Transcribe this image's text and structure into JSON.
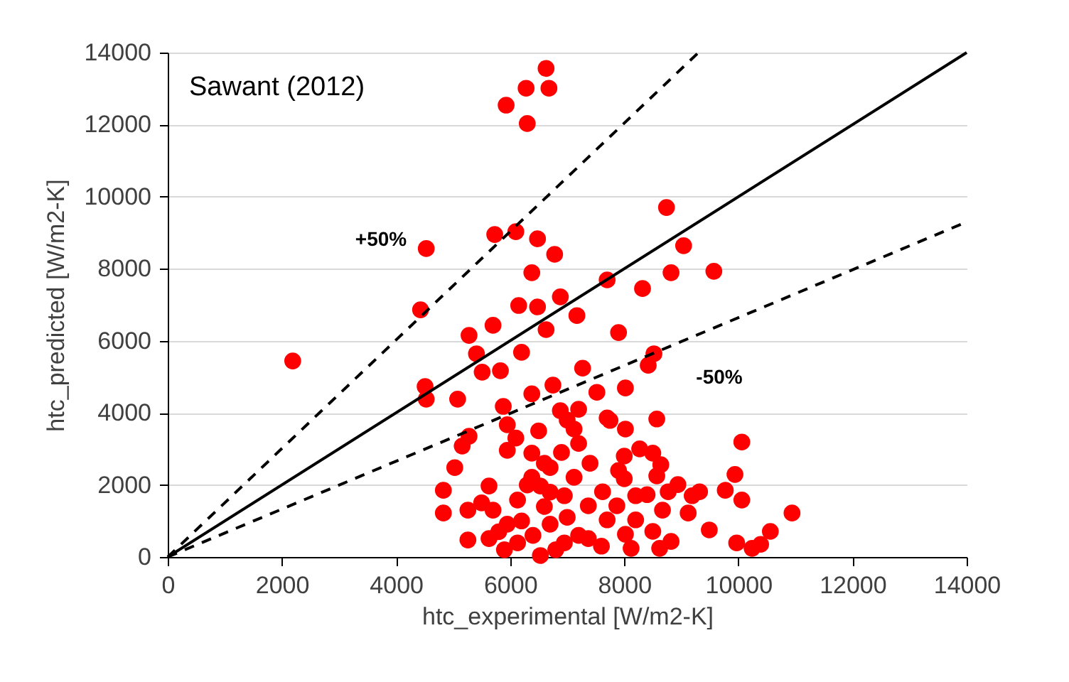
{
  "chart_data": {
    "type": "scatter",
    "xlabel": "htc_experimental [W/m2-K]",
    "ylabel": "htc_predicted [W/m2-K]",
    "xlim": [
      0,
      14000
    ],
    "ylim": [
      0,
      14000
    ],
    "xticks": [
      0,
      2000,
      4000,
      6000,
      8000,
      10000,
      12000,
      14000
    ],
    "yticks": [
      0,
      2000,
      4000,
      6000,
      8000,
      10000,
      12000,
      14000
    ],
    "grid": "y",
    "annotations": [
      "Sawant (2012)",
      "+50%",
      "-50%"
    ],
    "series": [
      {
        "marker": "circle",
        "color": "#ff0000",
        "x": [
          6630,
          6280,
          6680,
          5930,
          6300,
          2190,
          4530,
          4430,
          5730,
          6100,
          6480,
          6780,
          6380,
          6880,
          6480,
          6150,
          7170,
          7700,
          8320,
          8740,
          9040,
          8820,
          9570,
          5280,
          5700,
          7900,
          5410,
          6200,
          6630,
          4510,
          4530,
          5080,
          5510,
          5830,
          6380,
          6750,
          7270,
          7520,
          8020,
          6880,
          7200,
          7700,
          8020,
          8000,
          5280,
          5160,
          5030,
          4830,
          4830,
          5260,
          5260,
          5950,
          5950,
          5880,
          6380,
          6700,
          7120,
          7200,
          5630,
          5700,
          6130,
          6530,
          6950,
          7370,
          7620,
          7700,
          5630,
          6130,
          6530,
          6950,
          7370,
          8020,
          7870,
          5950,
          6700,
          6380,
          7120,
          8520,
          8420,
          7750,
          8570,
          10060,
          8270,
          8500,
          8640,
          8570,
          8000,
          8940,
          8770,
          9320,
          9190,
          9940,
          9770,
          10060,
          8400,
          8670,
          9120,
          10940,
          9490,
          10560,
          10390,
          10240,
          9970,
          8820,
          8500,
          8200,
          8620,
          8120,
          6200,
          6400,
          6600,
          6800,
          7000,
          7200,
          6300,
          6600,
          5800,
          6900,
          7400,
          5500,
          6500,
          7000,
          6100,
          5900,
          7600,
          7900,
          8200,
          6700
        ],
        "values": [
          13560,
          13010,
          13010,
          12540,
          12030,
          5440,
          8560,
          6860,
          8950,
          9030,
          8830,
          8400,
          7890,
          7220,
          6940,
          6980,
          6700,
          7690,
          7450,
          9700,
          8640,
          7890,
          7930,
          6150,
          6430,
          6230,
          5640,
          5680,
          6310,
          4730,
          4380,
          4380,
          5130,
          5170,
          4530,
          4770,
          5240,
          4570,
          4690,
          4060,
          4100,
          3860,
          3550,
          2800,
          3350,
          3080,
          2480,
          1850,
          1220,
          1300,
          470,
          2960,
          3670,
          4180,
          2880,
          2480,
          3550,
          3150,
          1970,
          1300,
          1580,
          1970,
          1700,
          1420,
          1810,
          1030,
          510,
          390,
          40,
          390,
          510,
          630,
          1420,
          910,
          910,
          2210,
          2210,
          5640,
          5320,
          3790,
          3830,
          3190,
          3000,
          2880,
          2560,
          2250,
          2170,
          2010,
          1810,
          1810,
          1700,
          2290,
          1850,
          1580,
          1730,
          1300,
          1220,
          1220,
          750,
          710,
          350,
          240,
          390,
          430,
          710,
          1030,
          240,
          240,
          1000,
          600,
          1400,
          200,
          1100,
          600,
          2000,
          2600,
          700,
          2900,
          2600,
          1500,
          3500,
          3800,
          3300,
          200,
          300,
          2400,
          1700,
          1800
        ]
      },
      {
        "type": "line",
        "color": "#000000",
        "line_style": "solid",
        "x": [
          0,
          14000
        ],
        "values": [
          0,
          14000
        ]
      },
      {
        "type": "line",
        "color": "#000000",
        "line_style": "dashed",
        "x": [
          0,
          9300
        ],
        "values": [
          0,
          14000
        ]
      },
      {
        "type": "line",
        "color": "#000000",
        "line_style": "dashed",
        "x": [
          0,
          14000
        ],
        "values": [
          0,
          9300
        ]
      }
    ]
  }
}
